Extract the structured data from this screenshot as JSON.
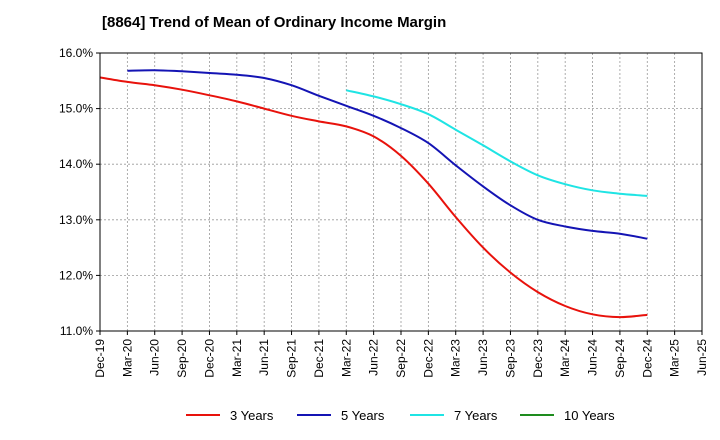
{
  "chart_data": {
    "type": "line",
    "title": "[8864]  Trend of Mean of Ordinary Income Margin",
    "xlabel": "",
    "ylabel": "",
    "x_ticks": [
      "Dec-19",
      "Mar-20",
      "Jun-20",
      "Sep-20",
      "Dec-20",
      "Mar-21",
      "Jun-21",
      "Sep-21",
      "Dec-21",
      "Mar-22",
      "Jun-22",
      "Sep-22",
      "Dec-22",
      "Mar-23",
      "Jun-23",
      "Sep-23",
      "Dec-23",
      "Mar-24",
      "Jun-24",
      "Sep-24",
      "Dec-24",
      "Mar-25",
      "Jun-25"
    ],
    "y_ticks": [
      "11.0%",
      "12.0%",
      "13.0%",
      "14.0%",
      "15.0%",
      "16.0%"
    ],
    "ylim": [
      11.0,
      16.0
    ],
    "grid": true,
    "legend_position": "bottom",
    "series": [
      {
        "name": "3 Years",
        "color": "#e8120c",
        "points": [
          [
            "Dec-19",
            15.56
          ],
          [
            "Mar-20",
            15.48
          ],
          [
            "Jun-20",
            15.42
          ],
          [
            "Sep-20",
            15.34
          ],
          [
            "Dec-20",
            15.24
          ],
          [
            "Mar-21",
            15.13
          ],
          [
            "Jun-21",
            15.0
          ],
          [
            "Sep-21",
            14.87
          ],
          [
            "Dec-21",
            14.77
          ],
          [
            "Mar-22",
            14.68
          ],
          [
            "Jun-22",
            14.5
          ],
          [
            "Sep-22",
            14.15
          ],
          [
            "Dec-22",
            13.65
          ],
          [
            "Mar-23",
            13.05
          ],
          [
            "Jun-23",
            12.5
          ],
          [
            "Sep-23",
            12.05
          ],
          [
            "Dec-23",
            11.7
          ],
          [
            "Mar-24",
            11.45
          ],
          [
            "Jun-24",
            11.3
          ],
          [
            "Sep-24",
            11.25
          ],
          [
            "Dec-24",
            11.29
          ]
        ]
      },
      {
        "name": "5 Years",
        "color": "#1414b4",
        "points": [
          [
            "Mar-20",
            15.68
          ],
          [
            "Jun-20",
            15.69
          ],
          [
            "Sep-20",
            15.67
          ],
          [
            "Dec-20",
            15.64
          ],
          [
            "Mar-21",
            15.61
          ],
          [
            "Jun-21",
            15.55
          ],
          [
            "Sep-21",
            15.42
          ],
          [
            "Dec-21",
            15.23
          ],
          [
            "Mar-22",
            15.05
          ],
          [
            "Jun-22",
            14.87
          ],
          [
            "Sep-22",
            14.65
          ],
          [
            "Dec-22",
            14.38
          ],
          [
            "Mar-23",
            13.98
          ],
          [
            "Jun-23",
            13.6
          ],
          [
            "Sep-23",
            13.26
          ],
          [
            "Dec-23",
            13.0
          ],
          [
            "Mar-24",
            12.88
          ],
          [
            "Jun-24",
            12.8
          ],
          [
            "Sep-24",
            12.75
          ],
          [
            "Dec-24",
            12.66
          ]
        ]
      },
      {
        "name": "7 Years",
        "color": "#1fe4e4",
        "points": [
          [
            "Mar-22",
            15.33
          ],
          [
            "Jun-22",
            15.22
          ],
          [
            "Sep-22",
            15.08
          ],
          [
            "Dec-22",
            14.9
          ],
          [
            "Mar-23",
            14.62
          ],
          [
            "Jun-23",
            14.34
          ],
          [
            "Sep-23",
            14.05
          ],
          [
            "Dec-23",
            13.8
          ],
          [
            "Mar-24",
            13.64
          ],
          [
            "Jun-24",
            13.53
          ],
          [
            "Sep-24",
            13.47
          ],
          [
            "Dec-24",
            13.43
          ]
        ]
      },
      {
        "name": "10 Years",
        "color": "#1e8c1e",
        "points": []
      }
    ]
  }
}
